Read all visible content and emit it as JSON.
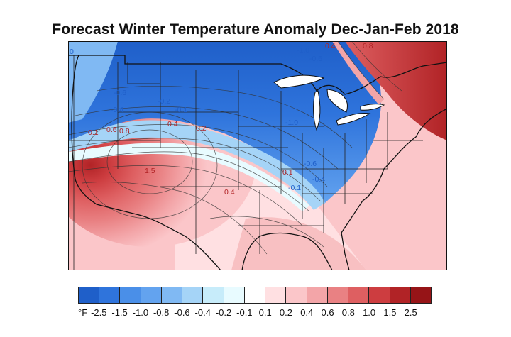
{
  "title": "Forecast Winter Temperature Anomaly Dec-Jan-Feb 2018",
  "legend": {
    "unit": "°F",
    "ticks": [
      "-2.5",
      "-1.5",
      "-1.0",
      "-0.8",
      "-0.6",
      "-0.4",
      "-0.2",
      "-0.1",
      "0.1",
      "0.2",
      "0.4",
      "0.6",
      "0.8",
      "1.0",
      "1.5",
      "2.5"
    ],
    "colors": [
      "#1f5fc9",
      "#2f74dc",
      "#4a8fe8",
      "#63a3ef",
      "#80b9f3",
      "#a5d4f7",
      "#c7ecfa",
      "#e8fbff",
      "#ffffff",
      "#ffe0e2",
      "#fbc6c9",
      "#f3a5a8",
      "#e98183",
      "#de5f61",
      "#cd3d40",
      "#b12326",
      "#961417"
    ]
  },
  "contour_labels": [
    {
      "text": "0",
      "color": "#1f5fc9"
    },
    {
      "text": "-1.0",
      "color": "#1f5fc9"
    },
    {
      "text": "-0.6",
      "color": "#1f5fc9"
    },
    {
      "text": "0.8",
      "color": "#b12326"
    },
    {
      "text": "0.4",
      "color": "#b12326"
    },
    {
      "text": "-0.6",
      "color": "#1f5fc9"
    },
    {
      "text": "-0.4",
      "color": "#1f5fc9"
    },
    {
      "text": "-0.2",
      "color": "#1f5fc9"
    },
    {
      "text": "-0.1",
      "color": "#1f5fc9"
    },
    {
      "text": "0.1",
      "color": "#b12326"
    },
    {
      "text": "0.6",
      "color": "#b12326"
    },
    {
      "text": "0.8",
      "color": "#b12326"
    },
    {
      "text": "0.4",
      "color": "#b12326"
    },
    {
      "text": "0.2",
      "color": "#b12326"
    },
    {
      "text": "1.5",
      "color": "#b12326"
    },
    {
      "text": "0.4",
      "color": "#b12326"
    },
    {
      "text": "0.1",
      "color": "#b12326"
    },
    {
      "text": "-1.0",
      "color": "#1f5fc9"
    },
    {
      "text": "-0.6",
      "color": "#1f5fc9"
    },
    {
      "text": "-0.4",
      "color": "#1f5fc9"
    },
    {
      "text": "-0.1",
      "color": "#1f5fc9"
    }
  ]
}
